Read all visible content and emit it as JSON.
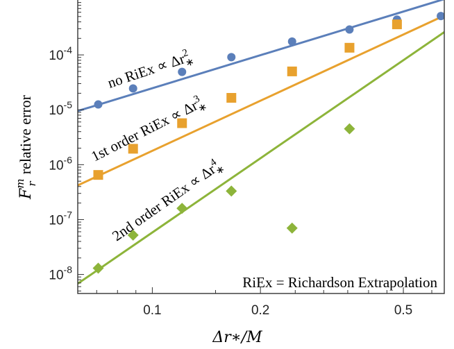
{
  "chart_data": {
    "type": "scatter",
    "xscale": "log",
    "yscale": "log",
    "xlim": [
      0.062,
      0.65
    ],
    "ylim": [
      4.5e-09,
      0.001
    ],
    "xlabel": "Δr∗/M",
    "ylabel_main": "F",
    "ylabel_sup": "m",
    "ylabel_sub": "r",
    "ylabel_rest": "relative error",
    "xticks": [
      0.1,
      0.2,
      0.5
    ],
    "xtick_labels": [
      "0.1",
      "0.2",
      "0.5"
    ],
    "yticks": [
      1e-08,
      1e-07,
      1e-06,
      1e-05,
      0.0001
    ],
    "ytick_exponents": [
      "-8",
      "-7",
      "-6",
      "-5",
      "-4"
    ],
    "ytick_base": "10",
    "x": [
      0.0707,
      0.0884,
      0.121,
      0.166,
      0.245,
      0.354,
      0.48,
      0.636
    ],
    "series": [
      {
        "label_text": "no RiEx ∝ Δr",
        "label_sup": "2",
        "label_sub": "∗",
        "color": "#5b7fba",
        "marker": "circle",
        "values": [
          1.25e-05,
          2.45e-05,
          4.9e-05,
          9.1e-05,
          0.000175,
          0.00029,
          0.00044,
          0.00051
        ],
        "fit_x": [
          0.062,
          0.65
        ],
        "fit_y": [
          9.5e-06,
          0.00104
        ]
      },
      {
        "label_text": "1st order RiEx ∝ Δr",
        "label_sup": "3",
        "label_sub": "∗",
        "color": "#e8a12e",
        "marker": "square",
        "values": [
          6.5e-07,
          1.95e-06,
          5.7e-06,
          1.65e-05,
          5e-05,
          0.000135,
          0.00036
        ],
        "fit_x": [
          0.062,
          0.65
        ],
        "fit_y": [
          4.2e-07,
          0.00052
        ]
      },
      {
        "label_text": "2nd order RiEx ∝ Δr",
        "label_sup": "4",
        "label_sub": "∗",
        "color": "#8db43a",
        "marker": "diamond",
        "values": [
          1.3e-08,
          5.2e-08,
          1.6e-07,
          3.3e-07,
          7e-08,
          4.5e-06
        ],
        "fit_x": [
          0.062,
          0.65
        ],
        "fit_y": [
          6.8e-09,
          0.00026
        ]
      }
    ],
    "annotation": "RiEx = Richardson Extrapolation"
  }
}
